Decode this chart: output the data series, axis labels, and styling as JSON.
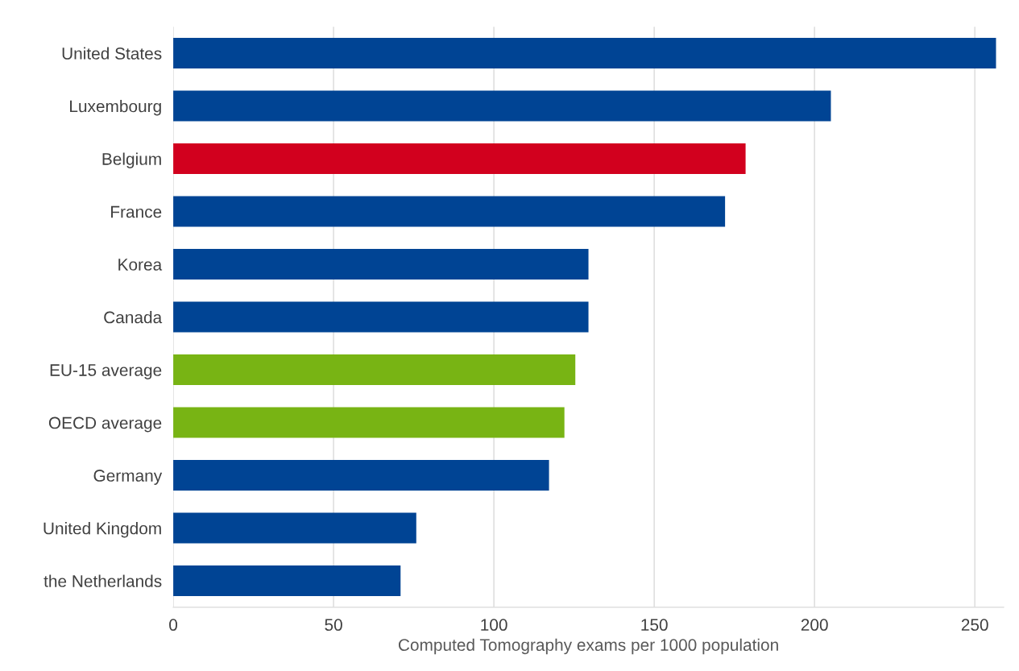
{
  "chart_data": {
    "type": "bar",
    "orientation": "horizontal",
    "xlabel": "Computed Tomography exams per 1000 population",
    "categories": [
      "United States",
      "Luxembourg",
      "Belgium",
      "France",
      "Korea",
      "Canada",
      "EU-15 average",
      "OECD average",
      "Germany",
      "United Kingdom",
      "the Netherlands"
    ],
    "values": [
      256.6,
      205.1,
      178.5,
      172.1,
      129.5,
      129.5,
      125.4,
      122.0,
      117.2,
      75.8,
      70.9
    ],
    "colors": [
      "#004494",
      "#004494",
      "#d2001e",
      "#004494",
      "#004494",
      "#004494",
      "#78b414",
      "#78b414",
      "#004494",
      "#004494",
      "#004494"
    ],
    "xlim": [
      0,
      259
    ],
    "xticks": [
      0,
      50,
      100,
      150,
      200,
      250
    ],
    "grid": "x",
    "legend": false
  }
}
